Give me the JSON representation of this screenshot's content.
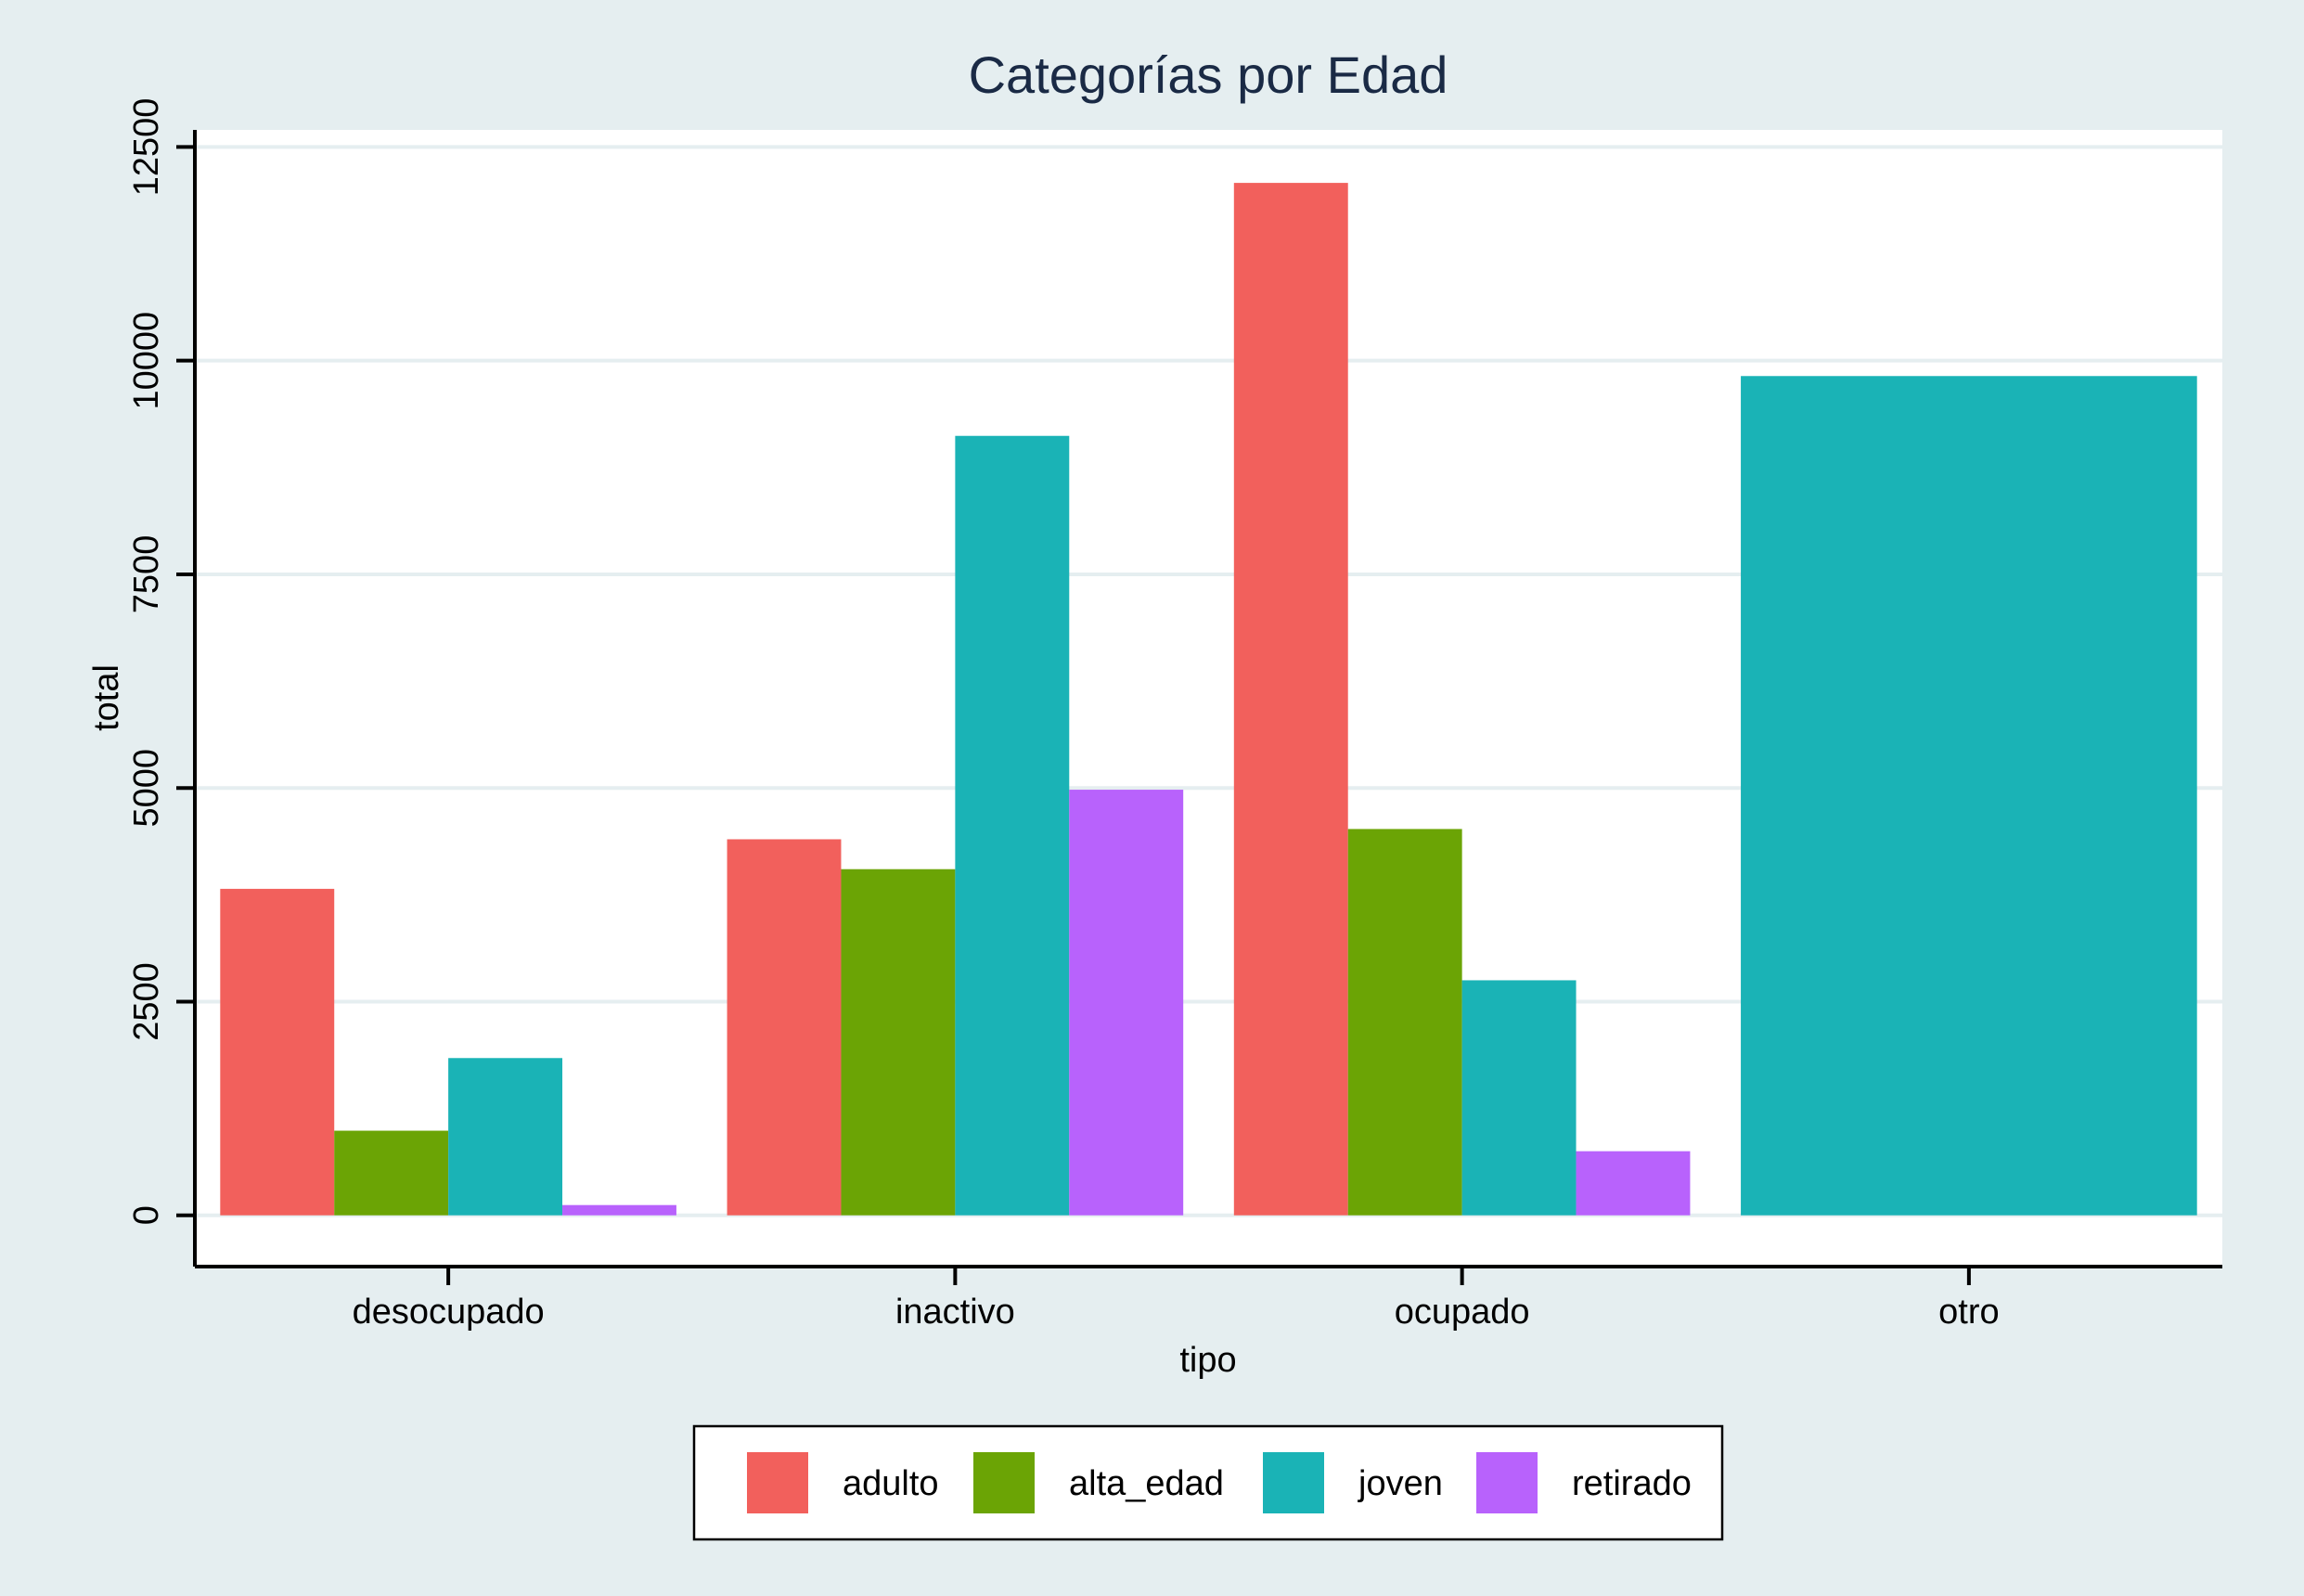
{
  "chart_data": {
    "type": "bar",
    "title": "Categorías por Edad",
    "xlabel": "tipo",
    "ylabel": "total",
    "categories": [
      "desocupado",
      "inactivo",
      "ocupado",
      "otro"
    ],
    "series": [
      {
        "name": "adulto",
        "color": "#f2605c",
        "values": [
          3820,
          4400,
          12080,
          null
        ]
      },
      {
        "name": "alta_edad",
        "color": "#6ba405",
        "values": [
          990,
          4050,
          4520,
          null
        ]
      },
      {
        "name": "joven",
        "color": "#1ab3b6",
        "values": [
          1840,
          9120,
          2750,
          9820
        ]
      },
      {
        "name": "retirado",
        "color": "#b862fc",
        "values": [
          120,
          4980,
          750,
          null
        ]
      }
    ],
    "ylim": [
      -600,
      12700
    ],
    "yticks": [
      0,
      2500,
      5000,
      7500,
      10000,
      12500
    ],
    "ytick_labels": [
      "0",
      "2500",
      "5000",
      "7500",
      "10000",
      "12500"
    ],
    "grid": true,
    "legend_position": "bottom",
    "colors": {
      "background": "#e5eef0",
      "plot_background": "#ffffff",
      "gridline": "#e5eef0",
      "title": "#1a2a45"
    }
  }
}
